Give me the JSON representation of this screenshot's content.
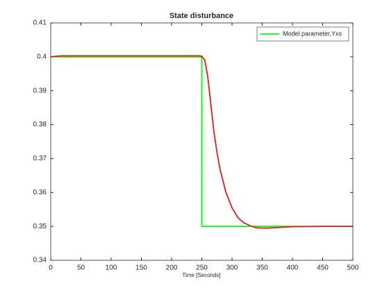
{
  "chart_data": {
    "type": "line",
    "title": "State disturbance",
    "xlabel": "Time [Seconds]",
    "xlim": [
      0,
      500
    ],
    "ylim": [
      0.34,
      0.41
    ],
    "xticks": [
      0,
      50,
      100,
      150,
      200,
      250,
      300,
      350,
      400,
      450,
      500
    ],
    "yticks": [
      0.34,
      0.35,
      0.36,
      0.37,
      0.38,
      0.39,
      0.4,
      0.41
    ],
    "grid": false,
    "legend": "upper right",
    "series": [
      {
        "name": "Model parameter,Yxs",
        "color": "#00ff00",
        "x": [
          0,
          250,
          250,
          500
        ],
        "values": [
          0.4,
          0.4,
          0.35,
          0.35
        ]
      },
      {
        "color": "#e31a1c",
        "x": [
          0,
          10,
          20,
          50,
          100,
          200,
          245,
          250,
          255,
          260,
          265,
          270,
          275,
          280,
          290,
          300,
          310,
          320,
          330,
          340,
          350,
          360,
          380,
          400,
          450,
          500
        ],
        "values": [
          0.4,
          0.4002,
          0.4003,
          0.4003,
          0.4003,
          0.4003,
          0.4003,
          0.4002,
          0.399,
          0.394,
          0.386,
          0.378,
          0.372,
          0.367,
          0.36,
          0.3555,
          0.3525,
          0.351,
          0.3502,
          0.3496,
          0.3495,
          0.3495,
          0.3497,
          0.3499,
          0.35,
          0.35
        ]
      }
    ]
  }
}
